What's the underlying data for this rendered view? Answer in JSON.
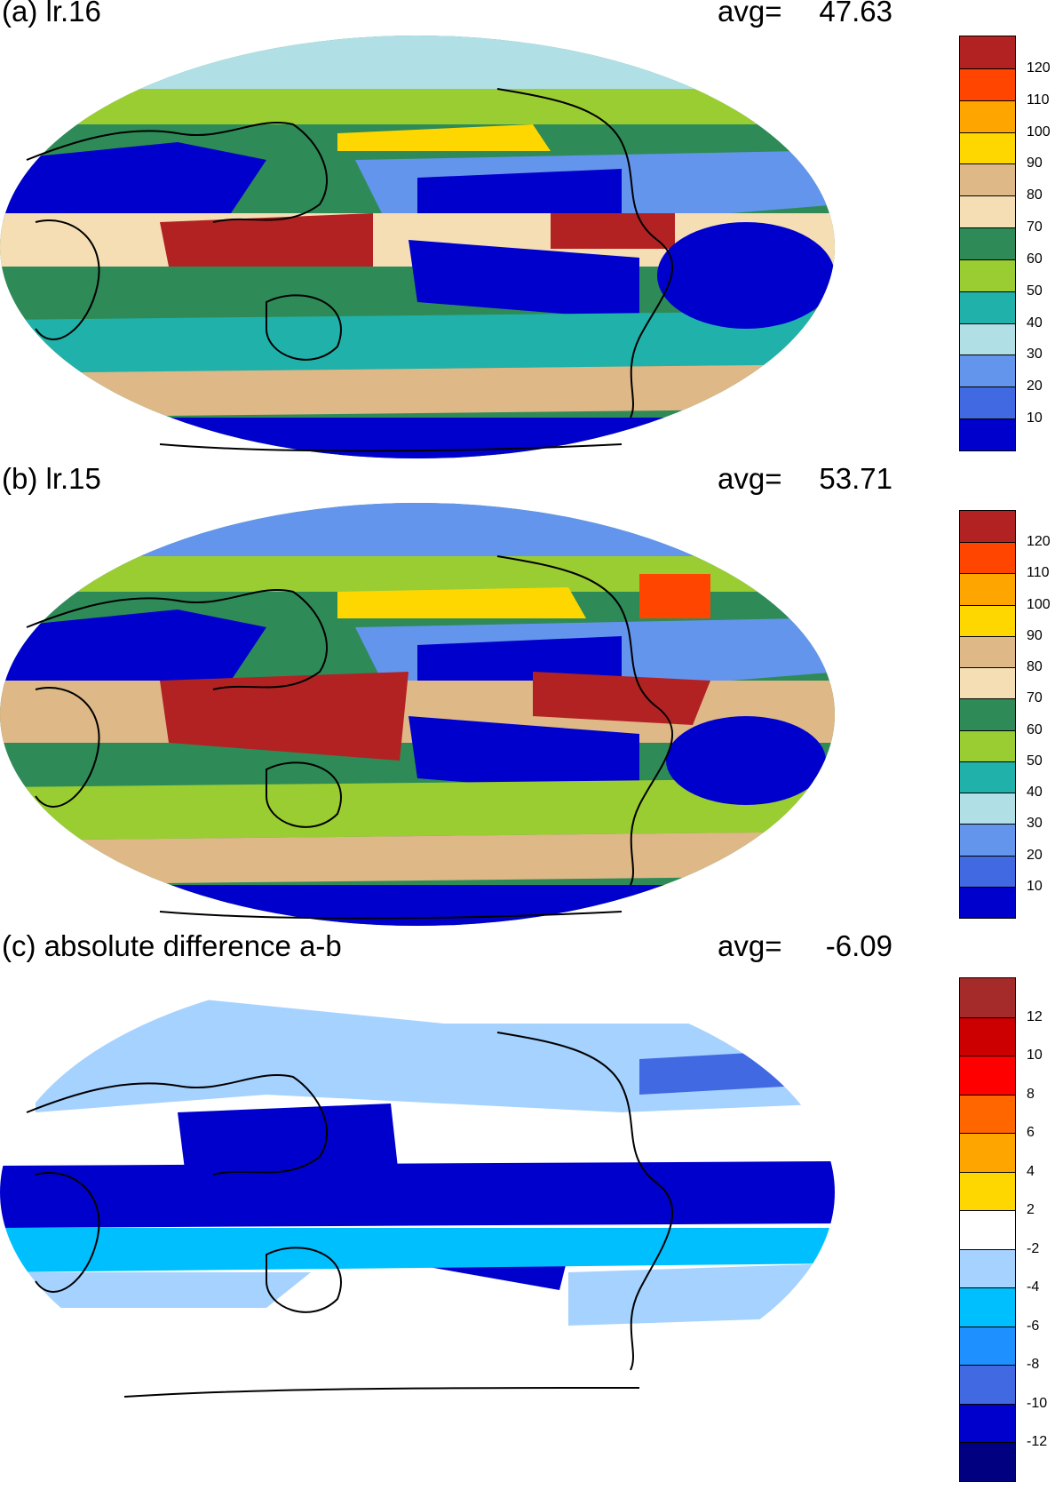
{
  "panels": [
    {
      "title": "(a) lr.16",
      "avg_label": "avg=",
      "avg_value": "47.63",
      "colorbar": {
        "labels": [
          "120",
          "110",
          "100",
          "90",
          "80",
          "70",
          "60",
          "50",
          "40",
          "30",
          "20",
          "10"
        ],
        "colors": [
          "#b22222",
          "#ff4500",
          "#ffa500",
          "#ffd700",
          "#deb887",
          "#f5deb3",
          "#2e8b57",
          "#9acd32",
          "#20b2aa",
          "#b0e0e6",
          "#6495ed",
          "#4169e1",
          "#0000cd"
        ]
      }
    },
    {
      "title": "(b) lr.15",
      "avg_label": "avg=",
      "avg_value": "53.71",
      "colorbar": {
        "labels": [
          "120",
          "110",
          "100",
          "90",
          "80",
          "70",
          "60",
          "50",
          "40",
          "30",
          "20",
          "10"
        ],
        "colors": [
          "#b22222",
          "#ff4500",
          "#ffa500",
          "#ffd700",
          "#deb887",
          "#f5deb3",
          "#2e8b57",
          "#9acd32",
          "#20b2aa",
          "#b0e0e6",
          "#6495ed",
          "#4169e1",
          "#0000cd"
        ]
      }
    },
    {
      "title": "(c) absolute difference a-b",
      "avg_label": "avg=",
      "avg_value": "-6.09",
      "colorbar": {
        "labels": [
          "12",
          "10",
          "8",
          "6",
          "4",
          "2",
          "-2",
          "-4",
          "-6",
          "-8",
          "-10",
          "-12"
        ],
        "colors": [
          "#a52a2a",
          "#cc0000",
          "#ff0000",
          "#ff6600",
          "#ffa500",
          "#ffd700",
          "#ffffff",
          "#a6d2ff",
          "#00bfff",
          "#1e90ff",
          "#4169e1",
          "#0000cd",
          "#000080"
        ]
      }
    }
  ]
}
